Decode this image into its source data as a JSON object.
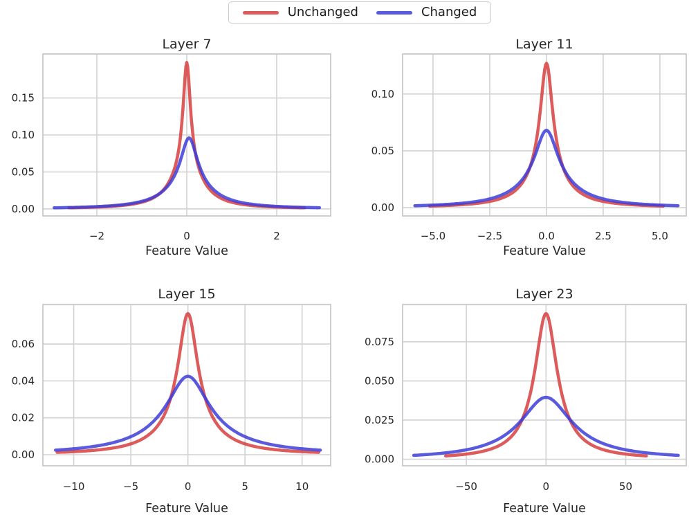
{
  "figure": {
    "background": "#ffffff"
  },
  "legend": {
    "position": "top-center",
    "items": [
      {
        "label": "Unchanged",
        "color": "#d84444",
        "opacity": 0.88
      },
      {
        "label": "Changed",
        "color": "#3d3dd8",
        "opacity": 0.85
      }
    ]
  },
  "chart_data": {
    "type": "line",
    "subtype": "kde-density",
    "grid": true,
    "legend_position": "top-center",
    "xlabel": "Feature Value",
    "colors": {
      "unchanged": "#d84444",
      "changed": "#3d3dd8"
    },
    "model": "y = peak*(core_weight/(1+((x-center)/core_width)^2) + (1-core_weight)/(1+((x-center)/tail_width)^2))",
    "subplots": [
      {
        "title": "Layer 7",
        "xlabel": "Feature Value",
        "xlim": [
          -3.2,
          3.2
        ],
        "ylim": [
          -0.0095,
          0.2095
        ],
        "xticks": [
          -2,
          0,
          2
        ],
        "xtick_labels": [
          "−2",
          "0",
          "2"
        ],
        "yticks": [
          0,
          0.05,
          0.1,
          0.15
        ],
        "ytick_labels": [
          "0.00",
          "0.05",
          "0.10",
          "0.15"
        ],
        "series": [
          {
            "name": "Unchanged",
            "peak": 0.198,
            "center": 0,
            "core_width": 0.1,
            "tail_width": 0.4,
            "core_weight": 0.72,
            "support": [
              -2.62,
              2.62
            ]
          },
          {
            "name": "Changed",
            "peak": 0.096,
            "center": 0.05,
            "core_width": 0.22,
            "tail_width": 0.58,
            "core_weight": 0.66,
            "support": [
              -2.95,
              2.95
            ]
          }
        ]
      },
      {
        "title": "Layer 11",
        "xlabel": "Feature Value",
        "xlim": [
          -6.34,
          6.16
        ],
        "ylim": [
          -0.0073,
          0.1352
        ],
        "xticks": [
          -5,
          -2.5,
          0,
          2.5,
          5
        ],
        "xtick_labels": [
          "−5.0",
          "−2.5",
          "0.0",
          "2.5",
          "5.0"
        ],
        "yticks": [
          0,
          0.05,
          0.1
        ],
        "ytick_labels": [
          "0.00",
          "0.05",
          "0.10"
        ],
        "series": [
          {
            "name": "Unchanged",
            "peak": 0.127,
            "center": 0,
            "core_width": 0.33,
            "tail_width": 0.95,
            "core_weight": 0.76,
            "support": [
              -5.15,
              5.15
            ]
          },
          {
            "name": "Changed",
            "peak": 0.068,
            "center": 0,
            "core_width": 0.6,
            "tail_width": 1.45,
            "core_weight": 0.7,
            "support": [
              -5.8,
              5.8
            ]
          }
        ]
      },
      {
        "title": "Layer 15",
        "xlabel": "Feature Value",
        "xlim": [
          -12.7,
          12.5
        ],
        "ylim": [
          -0.006,
          0.0814
        ],
        "xticks": [
          -10,
          -5,
          0,
          5,
          10
        ],
        "xtick_labels": [
          "−10",
          "−5",
          "0",
          "5",
          "10"
        ],
        "yticks": [
          0,
          0.02,
          0.04,
          0.06
        ],
        "ytick_labels": [
          "0.00",
          "0.02",
          "0.04",
          "0.06"
        ],
        "series": [
          {
            "name": "Unchanged",
            "peak": 0.0765,
            "center": 0,
            "core_width": 1.0,
            "tail_width": 2.6,
            "core_weight": 0.78,
            "support": [
              -11.45,
              11.45
            ]
          },
          {
            "name": "Changed",
            "peak": 0.0425,
            "center": 0,
            "core_width": 2.1,
            "tail_width": 4.4,
            "core_weight": 0.72,
            "support": [
              -11.6,
              11.6
            ]
          }
        ]
      },
      {
        "title": "Layer 23",
        "xlabel": "Feature Value",
        "xlim": [
          -90,
          88
        ],
        "ylim": [
          -0.0042,
          0.0988
        ],
        "xticks": [
          -50,
          0,
          50
        ],
        "xtick_labels": [
          "−50",
          "0",
          "50"
        ],
        "yticks": [
          0,
          0.025,
          0.05,
          0.075
        ],
        "ytick_labels": [
          "0.000",
          "0.025",
          "0.050",
          "0.075"
        ],
        "series": [
          {
            "name": "Unchanged",
            "peak": 0.093,
            "center": 0,
            "core_width": 8.0,
            "tail_width": 15.0,
            "core_weight": 0.82,
            "support": [
              -63,
              63
            ]
          },
          {
            "name": "Changed",
            "peak": 0.0395,
            "center": 0,
            "core_width": 18.0,
            "tail_width": 30.0,
            "core_weight": 0.75,
            "support": [
              -83,
              83
            ]
          }
        ]
      }
    ]
  }
}
